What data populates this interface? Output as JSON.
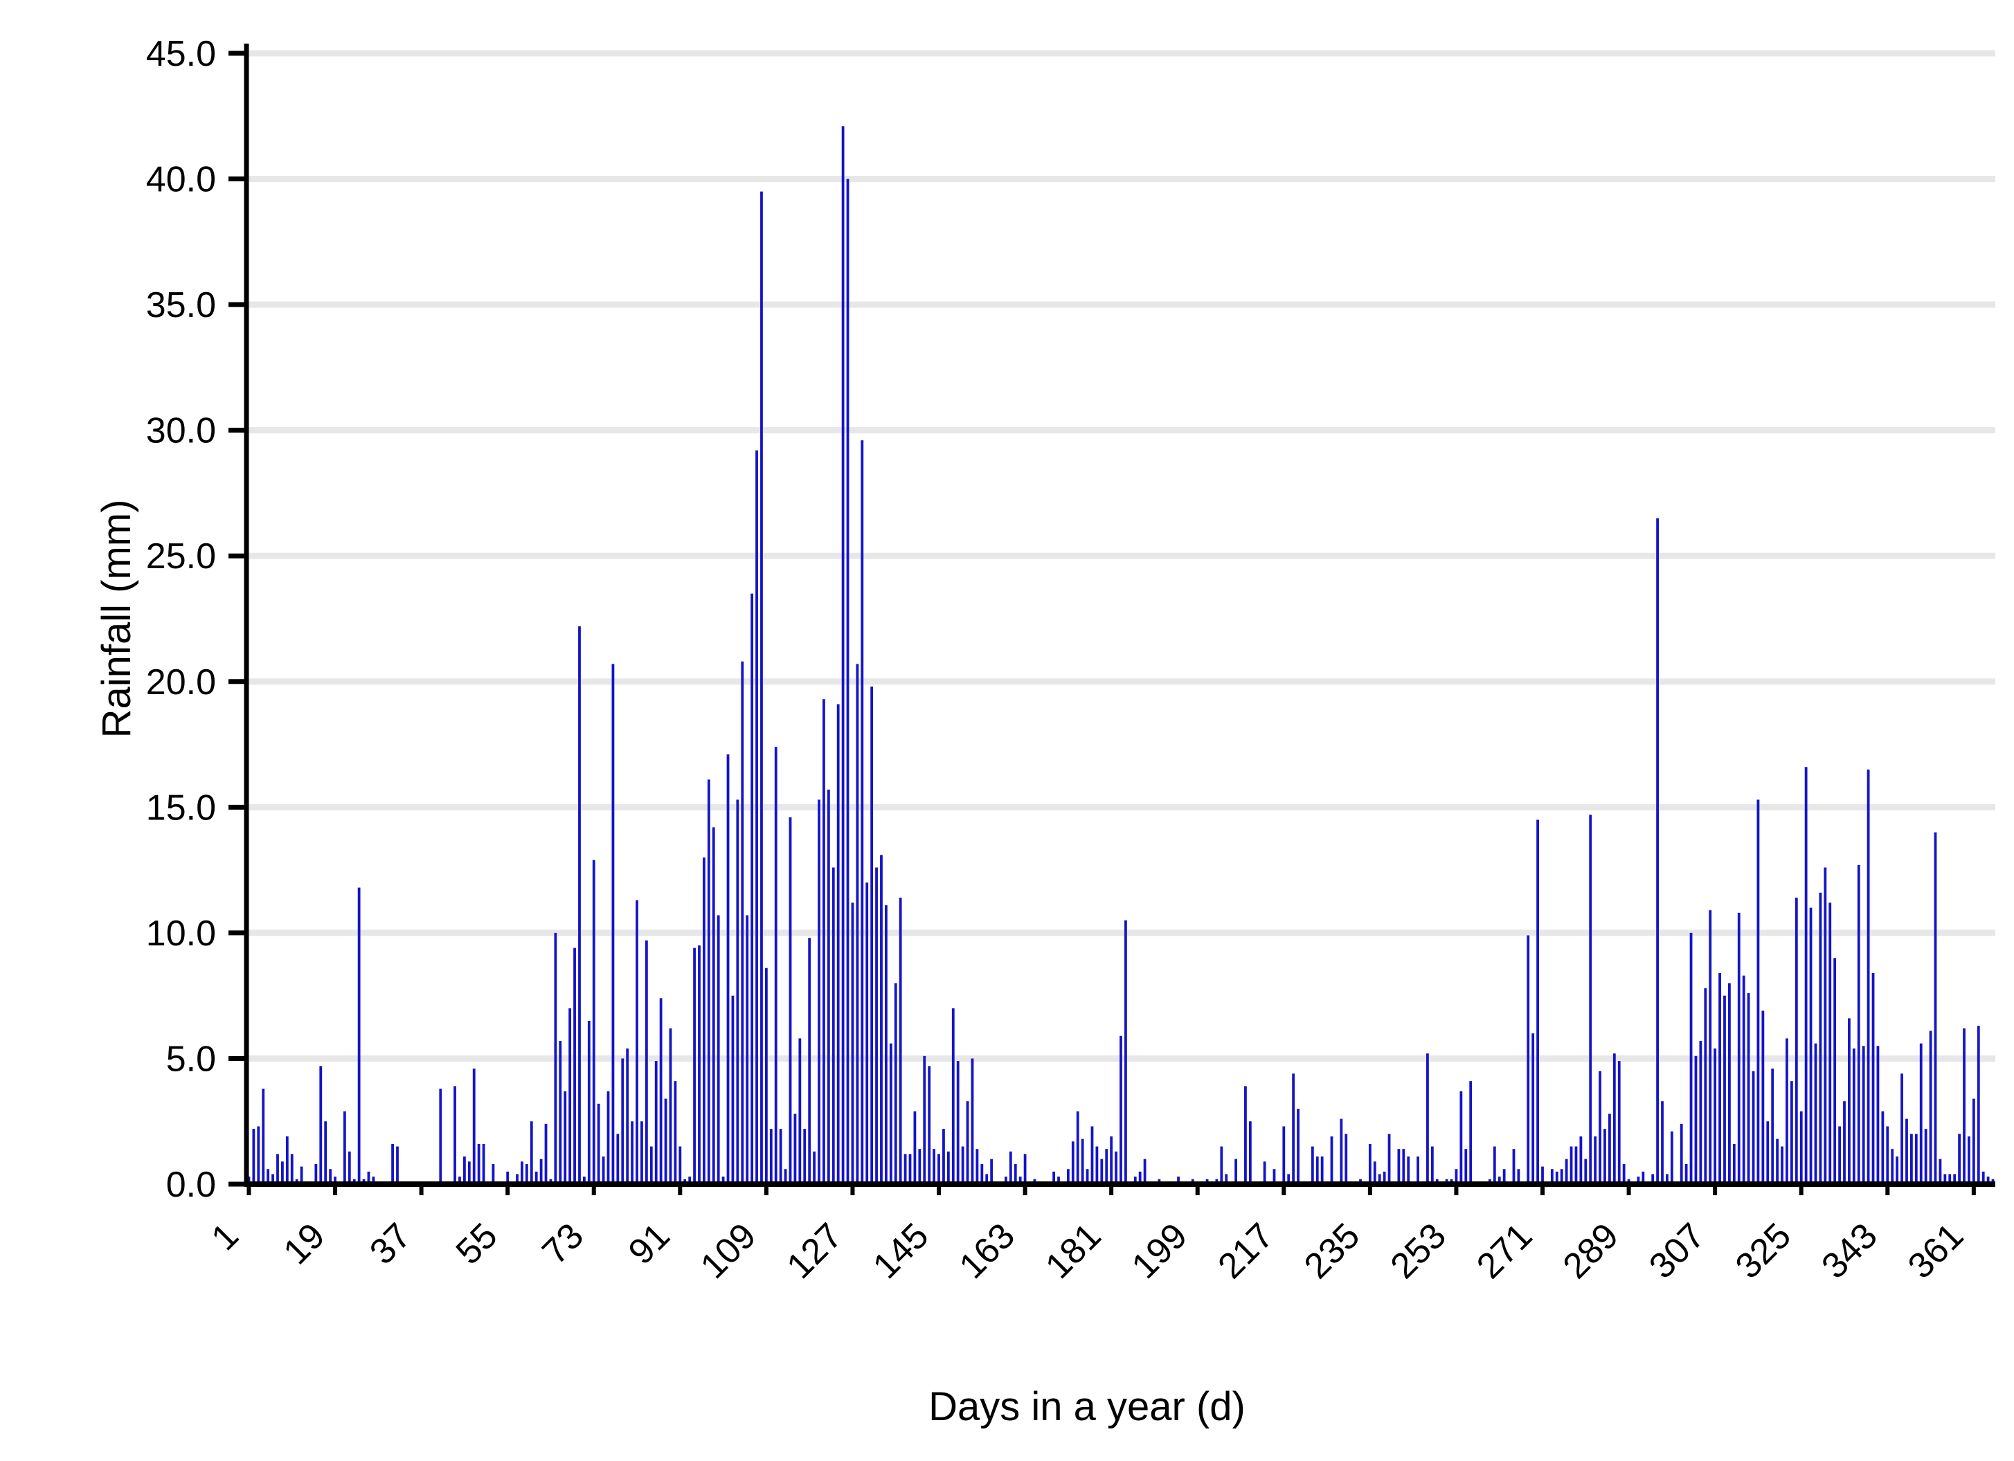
{
  "chart_data": {
    "type": "bar",
    "title": "",
    "xlabel": "Days in a year (d)",
    "ylabel": "Rainfall (mm)",
    "ylim": [
      0,
      45
    ],
    "ytick_step": 5,
    "ytick_labels": [
      "0.0",
      "5.0",
      "10.0",
      "15.0",
      "20.0",
      "25.0",
      "30.0",
      "35.0",
      "40.0",
      "45.0"
    ],
    "xtick_days": [
      1,
      19,
      37,
      55,
      73,
      91,
      109,
      127,
      145,
      163,
      181,
      199,
      217,
      235,
      253,
      271,
      289,
      307,
      325,
      343,
      361
    ],
    "grid": "horizontal",
    "legend": "none",
    "bar_color": "#1414C8",
    "grid_color": "#E7E7E7",
    "axis_color": "#000000",
    "x_unit": "day of year",
    "y_unit": "mm",
    "x": "days 1..365",
    "values": [
      0.3,
      2.2,
      2.3,
      3.8,
      0.6,
      0.4,
      1.2,
      0.9,
      1.9,
      1.2,
      0.2,
      0.7,
      0.1,
      0,
      0.8,
      4.7,
      2.5,
      0.6,
      0.3,
      0,
      2.9,
      1.3,
      0.2,
      11.8,
      0.2,
      0.5,
      0.3,
      0,
      0,
      0,
      1.6,
      1.5,
      0,
      0,
      0.1,
      0.1,
      0,
      0,
      0.1,
      0,
      3.8,
      0,
      0,
      3.9,
      0.3,
      1.1,
      0.9,
      4.6,
      1.6,
      1.6,
      0,
      0.8,
      0,
      0,
      0.5,
      0,
      0.4,
      0.9,
      0.8,
      2.5,
      0.5,
      1.0,
      2.4,
      0.2,
      10.0,
      5.7,
      3.7,
      7.0,
      9.4,
      22.2,
      0.3,
      6.5,
      12.9,
      3.2,
      1.1,
      3.7,
      20.7,
      2.0,
      5.0,
      5.4,
      2.5,
      11.3,
      2.5,
      9.7,
      1.5,
      4.9,
      7.4,
      3.4,
      6.2,
      4.1,
      1.5,
      0.2,
      0.3,
      9.4,
      9.5,
      13.0,
      16.1,
      14.2,
      10.7,
      0.3,
      17.1,
      7.5,
      15.3,
      20.8,
      10.7,
      23.5,
      29.2,
      39.5,
      8.6,
      2.2,
      17.4,
      2.2,
      0.6,
      14.6,
      2.8,
      5.8,
      2.2,
      9.8,
      1.3,
      15.3,
      19.3,
      15.7,
      12.6,
      19.1,
      42.1,
      40.0,
      11.2,
      20.7,
      29.6,
      12.0,
      19.8,
      12.6,
      13.1,
      11.1,
      5.6,
      8.0,
      11.4,
      1.2,
      1.2,
      2.9,
      1.4,
      5.1,
      4.7,
      1.4,
      1.2,
      2.2,
      1.3,
      7.0,
      4.9,
      1.5,
      3.3,
      5.0,
      1.4,
      0.8,
      0.4,
      1.0,
      0,
      0,
      0.3,
      1.3,
      0.8,
      0.3,
      1.2,
      0.1,
      0.2,
      0,
      0,
      0,
      0.5,
      0.3,
      0,
      0.6,
      1.7,
      2.9,
      1.8,
      0.6,
      2.3,
      1.5,
      1.0,
      1.4,
      1.9,
      1.3,
      5.9,
      10.5,
      0,
      0.3,
      0.5,
      1.0,
      0,
      0,
      0.2,
      0.1,
      0,
      0,
      0.3,
      0,
      0,
      0.2,
      0,
      0,
      0.2,
      0,
      0.2,
      1.5,
      0.4,
      0,
      1.0,
      0,
      3.9,
      2.5,
      0,
      0.1,
      0.9,
      0,
      0.6,
      0.1,
      2.3,
      0.4,
      4.4,
      3.0,
      0,
      0,
      1.5,
      1.1,
      1.1,
      0,
      1.9,
      0,
      2.6,
      2.0,
      0.1,
      0.1,
      0.2,
      0,
      1.6,
      0.9,
      0.4,
      0.5,
      2.0,
      0.1,
      1.4,
      1.4,
      1.1,
      0,
      1.1,
      0,
      5.2,
      1.5,
      0.2,
      0,
      0.2,
      0.2,
      0.6,
      3.7,
      1.4,
      4.1,
      0,
      0,
      0,
      0.2,
      1.5,
      0.3,
      0.6,
      0.1,
      1.4,
      0.6,
      0,
      9.9,
      6.0,
      14.5,
      0.7,
      0.1,
      0.6,
      0.5,
      0.6,
      1.0,
      1.5,
      1.5,
      1.9,
      1.0,
      14.7,
      1.9,
      4.5,
      2.2,
      2.8,
      5.2,
      4.9,
      0.8,
      0.2,
      0,
      0.3,
      0.5,
      0,
      0.4,
      26.5,
      3.3,
      0.4,
      2.1,
      0,
      2.4,
      0.8,
      10.0,
      5.1,
      5.7,
      7.8,
      10.9,
      5.4,
      8.4,
      7.5,
      8.0,
      1.6,
      10.8,
      8.3,
      7.6,
      4.5,
      15.3,
      6.9,
      2.5,
      4.6,
      1.8,
      1.5,
      5.8,
      4.1,
      11.4,
      2.9,
      16.6,
      11.0,
      5.6,
      11.6,
      12.6,
      11.2,
      9.0,
      2.3,
      3.3,
      6.6,
      5.4,
      12.7,
      5.5,
      16.5,
      8.4,
      5.5,
      2.9,
      2.3,
      1.4,
      1.1,
      4.4,
      2.6,
      2.0,
      2.0,
      5.6,
      2.2,
      6.1,
      14.0,
      1.0,
      0.4,
      0.4,
      0.4,
      2.0,
      6.2,
      1.9,
      3.4,
      6.3,
      0.5,
      0.3,
      0.2
    ]
  }
}
